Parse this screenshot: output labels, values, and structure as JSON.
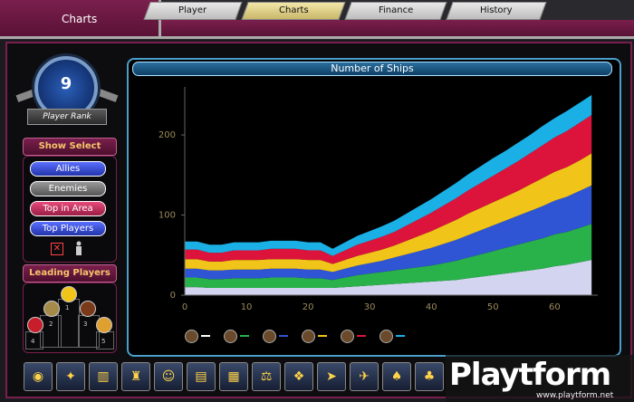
{
  "header": {
    "title": "Charts",
    "tabs": [
      {
        "label": "Player",
        "active": false
      },
      {
        "label": "Charts",
        "active": true
      },
      {
        "label": "Finance",
        "active": false
      },
      {
        "label": "History",
        "active": false
      }
    ]
  },
  "player": {
    "rank": "9",
    "rank_label": "Player Rank"
  },
  "show_select": {
    "title": "Show Select",
    "buttons": [
      "Allies",
      "Enemies",
      "Top in Area",
      "Top Players"
    ]
  },
  "leading_players": {
    "title": "Leading Players",
    "positions": [
      "1",
      "2",
      "3",
      "4",
      "5"
    ]
  },
  "chart_data": {
    "type": "area",
    "title": "Number of Ships",
    "xlabel": "",
    "ylabel": "",
    "xlim": [
      0,
      67
    ],
    "ylim": [
      0,
      260
    ],
    "x_ticks": [
      0,
      10,
      20,
      30,
      40,
      50,
      60
    ],
    "y_ticks": [
      0,
      100,
      200
    ],
    "grid": false,
    "x": [
      0,
      2,
      4,
      6,
      8,
      10,
      12,
      14,
      16,
      18,
      20,
      22,
      24,
      26,
      28,
      30,
      32,
      34,
      36,
      38,
      40,
      42,
      44,
      46,
      48,
      50,
      52,
      54,
      56,
      58,
      60,
      62,
      64,
      66
    ],
    "series": [
      {
        "color": "#d3d5f0",
        "values": [
          10,
          10,
          9,
          9,
          9,
          9,
          9,
          9,
          9,
          9,
          9,
          9,
          9,
          10,
          11,
          12,
          13,
          14,
          15,
          16,
          17,
          18,
          19,
          21,
          23,
          25,
          27,
          29,
          31,
          33,
          36,
          38,
          41,
          44
        ]
      },
      {
        "color": "#29b14a",
        "values": [
          12,
          12,
          11,
          11,
          12,
          12,
          12,
          13,
          13,
          13,
          12,
          12,
          10,
          12,
          14,
          15,
          16,
          17,
          18,
          19,
          20,
          22,
          24,
          26,
          28,
          30,
          32,
          34,
          36,
          38,
          40,
          41,
          43,
          45
        ]
      },
      {
        "color": "#2f55d4",
        "values": [
          11,
          11,
          11,
          11,
          11,
          11,
          11,
          11,
          11,
          11,
          11,
          11,
          10,
          11,
          12,
          13,
          14,
          16,
          18,
          20,
          22,
          24,
          26,
          28,
          30,
          32,
          34,
          36,
          38,
          40,
          42,
          44,
          46,
          48
        ]
      },
      {
        "color": "#f0c419",
        "values": [
          12,
          12,
          11,
          11,
          12,
          12,
          12,
          12,
          12,
          12,
          12,
          12,
          10,
          11,
          12,
          13,
          14,
          15,
          17,
          19,
          21,
          23,
          25,
          27,
          28,
          29,
          30,
          31,
          33,
          35,
          36,
          37,
          38,
          40
        ]
      },
      {
        "color": "#dc143c",
        "values": [
          12,
          12,
          11,
          11,
          12,
          12,
          12,
          13,
          13,
          13,
          12,
          12,
          10,
          12,
          14,
          15,
          16,
          17,
          19,
          21,
          23,
          25,
          27,
          29,
          31,
          33,
          35,
          37,
          39,
          41,
          43,
          45,
          47,
          48
        ]
      },
      {
        "color": "#1ab0e6",
        "values": [
          10,
          10,
          10,
          10,
          10,
          10,
          10,
          10,
          10,
          10,
          10,
          10,
          9,
          10,
          11,
          12,
          13,
          14,
          15,
          16,
          17,
          18,
          19,
          20,
          21,
          22,
          22,
          23,
          23,
          24,
          24,
          25,
          25,
          25
        ]
      }
    ]
  },
  "legend": {
    "items": [
      {
        "icon": "faction-1-icon",
        "color": "#ffffff"
      },
      {
        "icon": "faction-2-icon",
        "color": "#29b14a"
      },
      {
        "icon": "faction-3-icon",
        "color": "#2f55d4"
      },
      {
        "icon": "faction-4-icon",
        "color": "#f0c419"
      },
      {
        "icon": "faction-5-icon",
        "color": "#dc143c"
      },
      {
        "icon": "faction-6-icon",
        "color": "#1ab0e6"
      }
    ]
  },
  "toolbar": {
    "icons": [
      "planet-icon",
      "star-burst-icon",
      "city-icon",
      "station-icon",
      "smiley-icon",
      "cargo-icon",
      "freight-icon",
      "balance-scale-icon",
      "crystal-icon",
      "ship-icon",
      "fighter-icon",
      "crimson-ship-icon",
      "pink-ship-icon"
    ]
  },
  "watermark": {
    "brand": "Playtform",
    "url": "www.playtform.net"
  }
}
